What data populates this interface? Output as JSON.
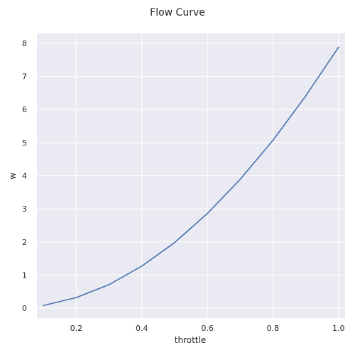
{
  "chart_data": {
    "type": "line",
    "title": "Flow Curve",
    "xlabel": "throttle",
    "ylabel": "w",
    "xlim": [
      0.08,
      1.02
    ],
    "ylim": [
      -0.3,
      8.3
    ],
    "x_ticks": [
      "0.2",
      "0.4",
      "0.6",
      "0.8",
      "1.0"
    ],
    "y_ticks": [
      "0",
      "1",
      "2",
      "3",
      "4",
      "5",
      "6",
      "7",
      "8"
    ],
    "grid": true,
    "legend": "none",
    "series": [
      {
        "color": "#4c72b0",
        "x": [
          0.1,
          0.2,
          0.3,
          0.4,
          0.5,
          0.6,
          0.7,
          0.8,
          0.9,
          1.0
        ],
        "y": [
          0.08,
          0.32,
          0.71,
          1.27,
          1.98,
          2.86,
          3.89,
          5.07,
          6.41,
          7.88
        ]
      }
    ]
  },
  "style": {
    "plot_background": "#eaeaf2",
    "grid_color": "#ffffff",
    "text_color": "#262626"
  }
}
